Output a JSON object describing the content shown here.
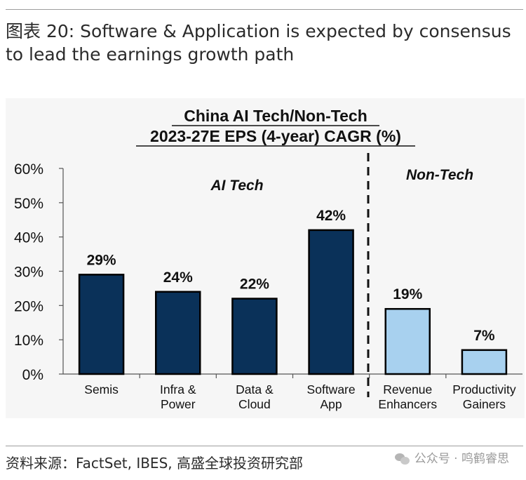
{
  "caption": "图表 20: Software & Application is expected by consensus to lead the earnings growth path",
  "source": "资料来源：FactSet, IBES, 高盛全球投资研究部",
  "watermark": "公众号 · 鸣鹤睿思",
  "colors": {
    "ai_bar": "#0a3159",
    "nontech_bar": "#a8d1ef",
    "bar_outline": "#000000",
    "panel_bg": "#f6f6f6"
  },
  "chart_data": {
    "type": "bar",
    "title": "China AI Tech/Non-Tech",
    "subtitle": "2023-27E EPS (4-year) CAGR (%)",
    "xlabel": "",
    "ylabel": "",
    "ylim": [
      0,
      60
    ],
    "y_ticks": [
      "0%",
      "10%",
      "20%",
      "30%",
      "40%",
      "50%",
      "60%"
    ],
    "grid": false,
    "groups": [
      {
        "name": "AI Tech",
        "color": "#0a3159"
      },
      {
        "name": "Non-Tech",
        "color": "#a8d1ef"
      }
    ],
    "categories": [
      {
        "label_lines": [
          "Semis"
        ],
        "group": "AI Tech",
        "value": 29,
        "data_label": "29%"
      },
      {
        "label_lines": [
          "Infra &",
          "Power"
        ],
        "group": "AI Tech",
        "value": 24,
        "data_label": "24%"
      },
      {
        "label_lines": [
          "Data &",
          "Cloud"
        ],
        "group": "AI Tech",
        "value": 22,
        "data_label": "22%"
      },
      {
        "label_lines": [
          "Software",
          "App"
        ],
        "group": "AI Tech",
        "value": 42,
        "data_label": "42%"
      },
      {
        "label_lines": [
          "Revenue",
          "Enhancers"
        ],
        "group": "Non-Tech",
        "value": 19,
        "data_label": "19%"
      },
      {
        "label_lines": [
          "Productivity",
          "Gainers"
        ],
        "group": "Non-Tech",
        "value": 7,
        "data_label": "7%"
      }
    ]
  }
}
